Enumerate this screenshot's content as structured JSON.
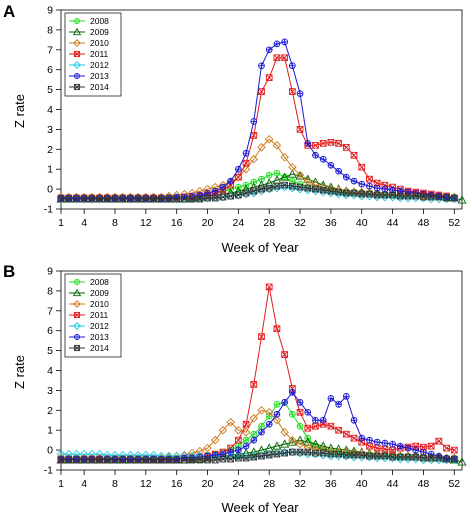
{
  "chart_data": [
    {
      "type": "line",
      "panel_label": "A",
      "xlabel": "Week of Year",
      "ylabel": "Z rate",
      "xlim": [
        1,
        53
      ],
      "ylim": [
        -1,
        9
      ],
      "x_ticks": [
        1,
        4,
        8,
        12,
        16,
        20,
        24,
        28,
        32,
        36,
        40,
        44,
        48,
        52
      ],
      "y_ticks": [
        -1,
        0,
        1,
        2,
        3,
        4,
        5,
        6,
        7,
        8,
        9
      ],
      "legend_position": "top-left",
      "x": [
        1,
        2,
        3,
        4,
        5,
        6,
        7,
        8,
        9,
        10,
        11,
        12,
        13,
        14,
        15,
        16,
        17,
        18,
        19,
        20,
        21,
        22,
        23,
        24,
        25,
        26,
        27,
        28,
        29,
        30,
        31,
        32,
        33,
        34,
        35,
        36,
        37,
        38,
        39,
        40,
        41,
        42,
        43,
        44,
        45,
        46,
        47,
        48,
        49,
        50,
        51,
        52,
        53
      ],
      "series": [
        {
          "name": "2008",
          "color": "#22dd22",
          "marker": "circle-plus",
          "values": [
            -0.4,
            -0.4,
            -0.4,
            -0.4,
            -0.4,
            -0.4,
            -0.4,
            -0.4,
            -0.4,
            -0.4,
            -0.4,
            -0.4,
            -0.4,
            -0.4,
            -0.4,
            -0.4,
            -0.4,
            -0.35,
            -0.3,
            -0.3,
            -0.2,
            -0.1,
            0,
            0.1,
            0.2,
            0.35,
            0.5,
            0.7,
            0.8,
            0.6,
            0.4,
            0.25,
            0.1,
            0,
            -0.05,
            -0.1,
            -0.15,
            -0.2,
            -0.2,
            -0.2,
            -0.25,
            -0.25,
            -0.3,
            -0.3,
            -0.3,
            -0.3,
            -0.3,
            -0.3,
            -0.3,
            -0.35,
            -0.35,
            -0.4,
            null
          ]
        },
        {
          "name": "2009",
          "color": "#006400",
          "marker": "triangle",
          "values": [
            -0.5,
            -0.5,
            -0.5,
            -0.5,
            -0.5,
            -0.5,
            -0.5,
            -0.5,
            -0.5,
            -0.5,
            -0.5,
            -0.5,
            -0.5,
            -0.5,
            -0.5,
            -0.5,
            -0.5,
            -0.45,
            -0.4,
            -0.35,
            -0.3,
            -0.25,
            -0.2,
            -0.1,
            0,
            0.1,
            0.2,
            0.3,
            0.45,
            0.6,
            0.75,
            0.65,
            0.5,
            0.35,
            0.2,
            0.1,
            0,
            -0.1,
            -0.15,
            -0.2,
            -0.2,
            -0.25,
            -0.25,
            -0.25,
            -0.3,
            -0.3,
            -0.3,
            -0.3,
            -0.35,
            -0.35,
            -0.4,
            -0.45,
            -0.55
          ]
        },
        {
          "name": "2010",
          "color": "#cc7a1a",
          "marker": "diamond",
          "values": [
            -0.4,
            -0.4,
            -0.4,
            -0.4,
            -0.4,
            -0.4,
            -0.4,
            -0.4,
            -0.4,
            -0.4,
            -0.4,
            -0.4,
            -0.4,
            -0.4,
            -0.35,
            -0.3,
            -0.25,
            -0.2,
            -0.1,
            0,
            0.1,
            0.2,
            0.35,
            0.6,
            1.0,
            1.5,
            2.1,
            2.5,
            2.2,
            1.6,
            1.1,
            0.7,
            0.4,
            0.2,
            0.1,
            0,
            -0.05,
            -0.1,
            -0.15,
            -0.15,
            -0.2,
            -0.2,
            -0.25,
            -0.25,
            -0.3,
            -0.3,
            -0.3,
            -0.35,
            -0.35,
            -0.35,
            -0.4,
            -0.4,
            null
          ]
        },
        {
          "name": "2011",
          "color": "#e41a1c",
          "marker": "square-x",
          "values": [
            -0.45,
            -0.45,
            -0.45,
            -0.45,
            -0.45,
            -0.45,
            -0.45,
            -0.45,
            -0.45,
            -0.45,
            -0.45,
            -0.45,
            -0.45,
            -0.45,
            -0.45,
            -0.45,
            -0.4,
            -0.4,
            -0.35,
            -0.3,
            -0.2,
            -0.05,
            0.2,
            0.6,
            1.3,
            2.7,
            4.9,
            5.6,
            6.6,
            6.6,
            4.9,
            3.0,
            2.2,
            2.2,
            2.3,
            2.35,
            2.3,
            2.1,
            1.7,
            1.1,
            0.5,
            0.3,
            0.2,
            0.1,
            0,
            -0.1,
            -0.15,
            -0.2,
            -0.25,
            -0.3,
            -0.35,
            -0.45,
            null
          ]
        },
        {
          "name": "2012",
          "color": "#1ec8e6",
          "marker": "diamond",
          "values": [
            -0.5,
            -0.5,
            -0.5,
            -0.5,
            -0.5,
            -0.5,
            -0.5,
            -0.5,
            -0.5,
            -0.5,
            -0.5,
            -0.5,
            -0.5,
            -0.5,
            -0.5,
            -0.5,
            -0.5,
            -0.5,
            -0.45,
            -0.45,
            -0.4,
            -0.4,
            -0.35,
            -0.3,
            -0.25,
            -0.2,
            -0.1,
            0,
            0.05,
            0.1,
            0.05,
            0,
            -0.05,
            -0.1,
            -0.15,
            -0.2,
            -0.25,
            -0.3,
            -0.3,
            -0.35,
            -0.35,
            -0.4,
            -0.4,
            -0.4,
            -0.45,
            -0.45,
            -0.45,
            -0.45,
            -0.5,
            -0.5,
            -0.5,
            -0.5,
            null
          ]
        },
        {
          "name": "2013",
          "color": "#1a1ad4",
          "marker": "circle-plus",
          "values": [
            -0.45,
            -0.45,
            -0.45,
            -0.45,
            -0.45,
            -0.45,
            -0.45,
            -0.45,
            -0.45,
            -0.45,
            -0.45,
            -0.45,
            -0.45,
            -0.45,
            -0.45,
            -0.4,
            -0.4,
            -0.35,
            -0.3,
            -0.2,
            -0.1,
            0.1,
            0.4,
            1.0,
            1.8,
            3.4,
            6.2,
            7.0,
            7.3,
            7.4,
            6.2,
            4.8,
            2.3,
            1.7,
            1.5,
            1.2,
            0.9,
            0.6,
            0.4,
            0.25,
            0.15,
            0.05,
            0,
            -0.05,
            -0.1,
            -0.15,
            -0.2,
            -0.25,
            -0.3,
            -0.35,
            -0.4,
            -0.45,
            null
          ]
        },
        {
          "name": "2014",
          "color": "#333333",
          "marker": "square-x",
          "values": [
            -0.5,
            -0.5,
            -0.5,
            -0.5,
            -0.5,
            -0.5,
            -0.5,
            -0.5,
            -0.5,
            -0.5,
            -0.5,
            -0.5,
            -0.5,
            -0.5,
            -0.5,
            -0.5,
            -0.5,
            -0.5,
            -0.5,
            -0.45,
            -0.45,
            -0.4,
            -0.35,
            -0.3,
            -0.2,
            -0.1,
            0,
            0.05,
            0.15,
            0.2,
            0.15,
            0.1,
            0.05,
            0,
            -0.05,
            -0.1,
            -0.15,
            -0.2,
            -0.2,
            -0.25,
            -0.25,
            -0.3,
            -0.3,
            -0.3,
            -0.35,
            -0.35,
            -0.35,
            -0.4,
            -0.4,
            -0.4,
            -0.45,
            -0.45,
            null
          ]
        }
      ]
    },
    {
      "type": "line",
      "panel_label": "B",
      "xlabel": "Week of Year",
      "ylabel": "Z rate",
      "xlim": [
        1,
        53
      ],
      "ylim": [
        -1,
        9
      ],
      "x_ticks": [
        1,
        4,
        8,
        12,
        16,
        20,
        24,
        28,
        32,
        36,
        40,
        44,
        48,
        52
      ],
      "y_ticks": [
        -1,
        0,
        1,
        2,
        3,
        4,
        5,
        6,
        7,
        8,
        9
      ],
      "legend_position": "top-left",
      "x": [
        1,
        2,
        3,
        4,
        5,
        6,
        7,
        8,
        9,
        10,
        11,
        12,
        13,
        14,
        15,
        16,
        17,
        18,
        19,
        20,
        21,
        22,
        23,
        24,
        25,
        26,
        27,
        28,
        29,
        30,
        31,
        32,
        33,
        34,
        35,
        36,
        37,
        38,
        39,
        40,
        41,
        42,
        43,
        44,
        45,
        46,
        47,
        48,
        49,
        50,
        51,
        52,
        53
      ],
      "series": [
        {
          "name": "2008",
          "color": "#22dd22",
          "marker": "circle-plus",
          "values": [
            -0.4,
            -0.4,
            -0.4,
            -0.4,
            -0.4,
            -0.4,
            -0.4,
            -0.4,
            -0.4,
            -0.4,
            -0.4,
            -0.4,
            -0.4,
            -0.4,
            -0.4,
            -0.4,
            -0.4,
            -0.35,
            -0.3,
            -0.25,
            -0.2,
            -0.1,
            0,
            0.2,
            0.5,
            0.8,
            1.2,
            1.7,
            2.3,
            2.4,
            1.8,
            1.2,
            0.6,
            0.2,
            0,
            -0.1,
            -0.15,
            -0.2,
            -0.2,
            -0.25,
            -0.25,
            -0.3,
            -0.3,
            -0.3,
            -0.3,
            -0.35,
            -0.35,
            -0.35,
            -0.35,
            -0.4,
            -0.4,
            -0.4,
            null
          ]
        },
        {
          "name": "2009",
          "color": "#006400",
          "marker": "triangle",
          "values": [
            -0.5,
            -0.5,
            -0.5,
            -0.5,
            -0.5,
            -0.5,
            -0.5,
            -0.5,
            -0.5,
            -0.5,
            -0.5,
            -0.5,
            -0.5,
            -0.5,
            -0.5,
            -0.5,
            -0.5,
            -0.45,
            -0.45,
            -0.4,
            -0.35,
            -0.3,
            -0.25,
            -0.2,
            -0.15,
            -0.1,
            0,
            0.1,
            0.2,
            0.3,
            0.4,
            0.5,
            0.4,
            0.3,
            0.2,
            0.1,
            0.05,
            0,
            -0.05,
            -0.1,
            -0.15,
            -0.2,
            -0.25,
            -0.25,
            -0.3,
            -0.3,
            -0.35,
            -0.35,
            -0.4,
            -0.4,
            -0.45,
            -0.5,
            -0.6
          ]
        },
        {
          "name": "2010",
          "color": "#cc7a1a",
          "marker": "diamond",
          "values": [
            -0.4,
            -0.4,
            -0.4,
            -0.4,
            -0.4,
            -0.4,
            -0.4,
            -0.4,
            -0.4,
            -0.4,
            -0.4,
            -0.4,
            -0.4,
            -0.4,
            -0.35,
            -0.3,
            -0.25,
            -0.15,
            -0.05,
            0.1,
            0.5,
            1.0,
            1.4,
            1.0,
            0.9,
            1.6,
            2.0,
            1.9,
            1.5,
            0.9,
            0.5,
            0.3,
            0.15,
            0.05,
            0,
            -0.05,
            -0.1,
            -0.1,
            -0.15,
            -0.15,
            -0.2,
            -0.2,
            -0.25,
            -0.25,
            -0.3,
            -0.3,
            -0.3,
            -0.35,
            -0.35,
            -0.35,
            -0.4,
            -0.4,
            null
          ]
        },
        {
          "name": "2011",
          "color": "#e41a1c",
          "marker": "square-x",
          "values": [
            -0.45,
            -0.45,
            -0.45,
            -0.45,
            -0.45,
            -0.45,
            -0.45,
            -0.45,
            -0.45,
            -0.45,
            -0.45,
            -0.45,
            -0.45,
            -0.45,
            -0.45,
            -0.45,
            -0.4,
            -0.4,
            -0.35,
            -0.3,
            -0.2,
            -0.1,
            0.1,
            0.5,
            1.3,
            3.3,
            5.7,
            8.2,
            6.1,
            4.8,
            3.1,
            1.9,
            1.1,
            1.2,
            1.3,
            1.2,
            1.0,
            0.8,
            0.6,
            0.4,
            0.2,
            0.1,
            0.05,
            0,
            0.1,
            0.15,
            0.2,
            0.15,
            0.2,
            0.45,
            0.1,
            0,
            null
          ]
        },
        {
          "name": "2012",
          "color": "#1ec8e6",
          "marker": "diamond",
          "values": [
            -0.2,
            -0.2,
            -0.2,
            -0.2,
            -0.2,
            -0.2,
            -0.25,
            -0.25,
            -0.25,
            -0.25,
            -0.25,
            -0.25,
            -0.25,
            -0.3,
            -0.3,
            -0.3,
            -0.3,
            -0.3,
            -0.3,
            -0.3,
            -0.3,
            -0.3,
            -0.3,
            -0.3,
            -0.3,
            -0.3,
            -0.25,
            -0.2,
            -0.15,
            -0.1,
            -0.1,
            -0.15,
            -0.2,
            -0.2,
            -0.25,
            -0.3,
            -0.3,
            -0.3,
            -0.35,
            -0.35,
            -0.35,
            -0.4,
            -0.4,
            -0.4,
            -0.45,
            -0.45,
            -0.45,
            -0.5,
            -0.5,
            -0.5,
            -0.5,
            -0.5,
            null
          ]
        },
        {
          "name": "2013",
          "color": "#1a1ad4",
          "marker": "circle-plus",
          "values": [
            -0.45,
            -0.45,
            -0.45,
            -0.45,
            -0.45,
            -0.45,
            -0.45,
            -0.45,
            -0.45,
            -0.45,
            -0.45,
            -0.45,
            -0.45,
            -0.45,
            -0.45,
            -0.45,
            -0.4,
            -0.4,
            -0.35,
            -0.3,
            -0.25,
            -0.2,
            -0.1,
            0,
            0.2,
            0.5,
            0.9,
            1.3,
            1.8,
            2.4,
            2.9,
            2.4,
            1.9,
            1.5,
            1.5,
            2.6,
            2.3,
            2.7,
            1.5,
            0.6,
            0.5,
            0.4,
            0.35,
            0.3,
            0.2,
            0.1,
            0,
            -0.1,
            -0.2,
            -0.3,
            -0.4,
            -0.45,
            null
          ]
        },
        {
          "name": "2014",
          "color": "#333333",
          "marker": "square-x",
          "values": [
            -0.5,
            -0.5,
            -0.5,
            -0.5,
            -0.5,
            -0.5,
            -0.5,
            -0.5,
            -0.5,
            -0.5,
            -0.5,
            -0.5,
            -0.5,
            -0.5,
            -0.5,
            -0.5,
            -0.5,
            -0.5,
            -0.5,
            -0.5,
            -0.5,
            -0.45,
            -0.45,
            -0.4,
            -0.4,
            -0.35,
            -0.3,
            -0.25,
            -0.2,
            -0.15,
            -0.1,
            -0.1,
            -0.1,
            -0.15,
            -0.15,
            -0.2,
            -0.2,
            -0.25,
            -0.25,
            -0.25,
            -0.3,
            -0.3,
            -0.3,
            -0.35,
            -0.35,
            -0.35,
            -0.35,
            -0.4,
            -0.4,
            -0.4,
            -0.45,
            -0.45,
            null
          ]
        }
      ]
    }
  ]
}
